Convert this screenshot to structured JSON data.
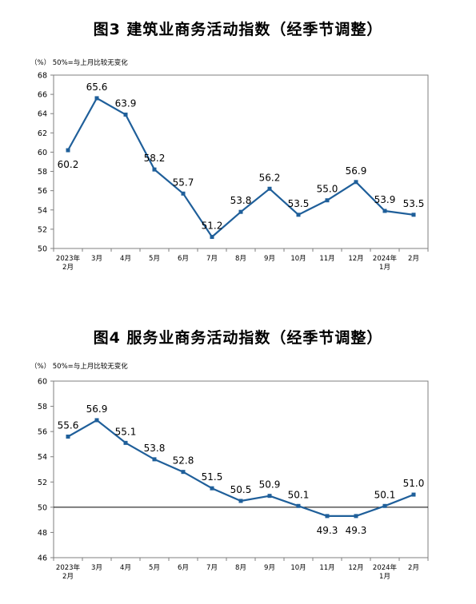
{
  "chart_data": [
    {
      "type": "line",
      "title": "图3  建筑业商务活动指数（经季节调整）",
      "note": "（%）  50%=与上月比较无变化",
      "categories": [
        "2023年|2月",
        "3月",
        "4月",
        "5月",
        "6月",
        "7月",
        "8月",
        "9月",
        "10月",
        "11月",
        "12月",
        "2024年|1月",
        "2月"
      ],
      "series": [
        {
          "values": [
            60.2,
            65.6,
            63.9,
            58.2,
            55.7,
            51.2,
            53.8,
            56.2,
            53.5,
            55.0,
            56.9,
            53.9,
            53.5
          ]
        }
      ],
      "data_labels": [
        "60.2",
        "65.6",
        "63.9",
        "58.2",
        "55.7",
        "51.2",
        "53.8",
        "56.2",
        "53.5",
        "55.0",
        "56.9",
        "53.9",
        "53.5"
      ],
      "label_pos": [
        "below",
        "above",
        "above",
        "above",
        "above",
        "above",
        "above",
        "above",
        "above",
        "above",
        "above",
        "above",
        "above"
      ],
      "ylim": [
        50,
        68
      ],
      "yticks": [
        50,
        52,
        54,
        56,
        58,
        60,
        62,
        64,
        66,
        68
      ],
      "reference_line": null,
      "grid": false,
      "color": "#1f5f9a"
    },
    {
      "type": "line",
      "title": "图4  服务业商务活动指数（经季节调整）",
      "note": "（%）  50%=与上月比较无变化",
      "categories": [
        "2023年|2月",
        "3月",
        "4月",
        "5月",
        "6月",
        "7月",
        "8月",
        "9月",
        "10月",
        "11月",
        "12月",
        "2024年|1月",
        "2月"
      ],
      "series": [
        {
          "values": [
            55.6,
            56.9,
            55.1,
            53.8,
            52.8,
            51.5,
            50.5,
            50.9,
            50.1,
            49.3,
            49.3,
            50.1,
            51.0
          ]
        }
      ],
      "data_labels": [
        "55.6",
        "56.9",
        "55.1",
        "53.8",
        "52.8",
        "51.5",
        "50.5",
        "50.9",
        "50.1",
        "49.3",
        "49.3",
        "50.1",
        "51.0"
      ],
      "label_pos": [
        "above",
        "above",
        "above",
        "above",
        "above",
        "above",
        "above",
        "above",
        "above",
        "below",
        "below",
        "above",
        "above"
      ],
      "ylim": [
        46,
        60
      ],
      "yticks": [
        46,
        48,
        50,
        52,
        54,
        56,
        58,
        60
      ],
      "reference_line": 50,
      "grid": false,
      "color": "#1f5f9a"
    }
  ]
}
